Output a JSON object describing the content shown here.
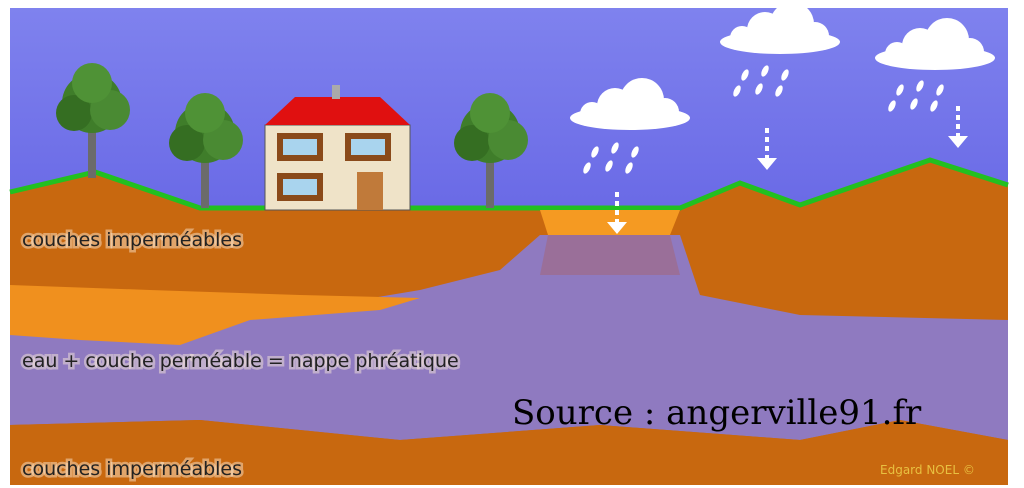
{
  "labels": {
    "top_layer": "couches imperméables",
    "aquifer": "eau + couche perméable = nappe phréatique",
    "bottom_layer": "couches imperméables"
  },
  "source": "Source : angerville91.fr",
  "credit": "Edgard NOEL ©"
}
